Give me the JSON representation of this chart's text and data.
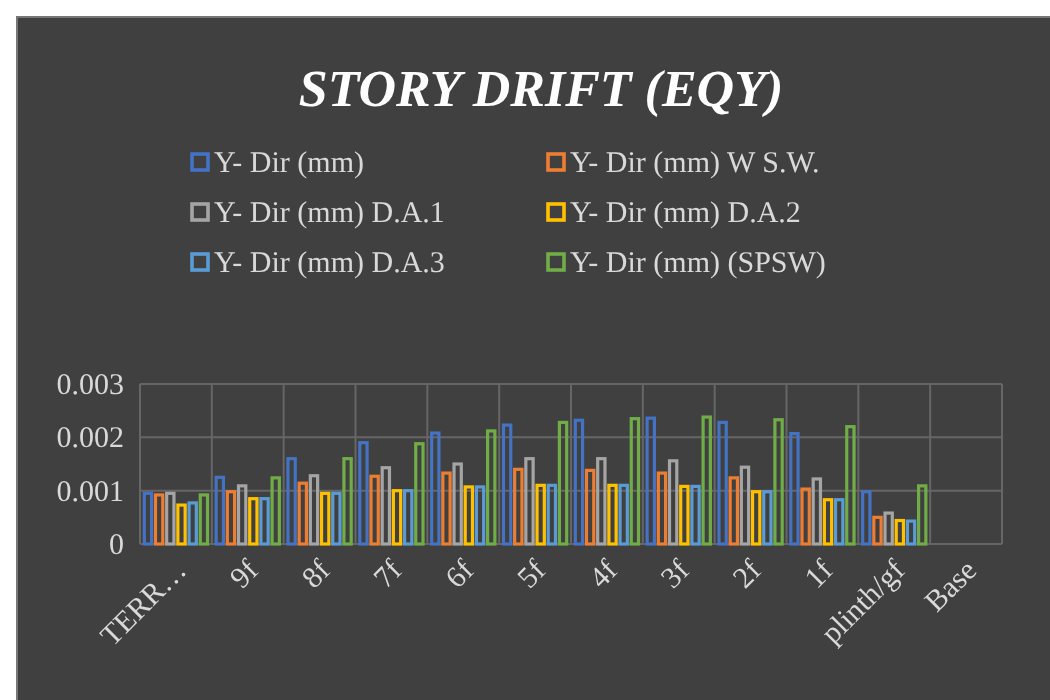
{
  "chart_data": {
    "type": "bar",
    "title": "STORY DRIFT (EQY)",
    "categories": [
      "TERR…",
      "9f",
      "8f",
      "7f",
      "6f",
      "5f",
      "4f",
      "3f",
      "2f",
      "1f",
      "plinth/gf",
      "Base"
    ],
    "series": [
      {
        "name": "Y- Dir (mm)",
        "color": "#4472c4",
        "values": [
          0.00095,
          0.00125,
          0.0016,
          0.0019,
          0.00208,
          0.00223,
          0.00232,
          0.00236,
          0.00228,
          0.00207,
          0.00098,
          null
        ]
      },
      {
        "name": "Y- Dir (mm) W S.W.",
        "color": "#ed7d31",
        "values": [
          0.00092,
          0.00098,
          0.00114,
          0.00127,
          0.00133,
          0.0014,
          0.00138,
          0.00133,
          0.00124,
          0.00103,
          0.0005,
          null
        ]
      },
      {
        "name": "Y- Dir (mm) D.A.1",
        "color": "#a5a5a5",
        "values": [
          0.00095,
          0.00109,
          0.00128,
          0.00143,
          0.0015,
          0.0016,
          0.0016,
          0.00156,
          0.00144,
          0.00122,
          0.00058,
          null
        ]
      },
      {
        "name": "Y- Dir (mm) D.A.2",
        "color": "#ffc000",
        "values": [
          0.00073,
          0.00085,
          0.00095,
          0.001,
          0.00107,
          0.0011,
          0.0011,
          0.00108,
          0.00098,
          0.00083,
          0.00044,
          null
        ]
      },
      {
        "name": "Y- Dir (mm) D.A.3",
        "color": "#5b9bd5",
        "values": [
          0.00077,
          0.00085,
          0.00095,
          0.001,
          0.00107,
          0.0011,
          0.0011,
          0.00108,
          0.00098,
          0.00083,
          0.00043,
          null
        ]
      },
      {
        "name": "Y- Dir (mm) (SPSW)",
        "color": "#70ad47",
        "values": [
          0.00092,
          0.00124,
          0.0016,
          0.00188,
          0.00212,
          0.00228,
          0.00235,
          0.00238,
          0.00233,
          0.0022,
          0.00109,
          null
        ]
      }
    ],
    "ylim": [
      0,
      0.003
    ],
    "yticks": [
      {
        "value": 0,
        "label": "0"
      },
      0.001,
      0.002,
      0.003
    ],
    "grid": true,
    "legend": "top"
  }
}
